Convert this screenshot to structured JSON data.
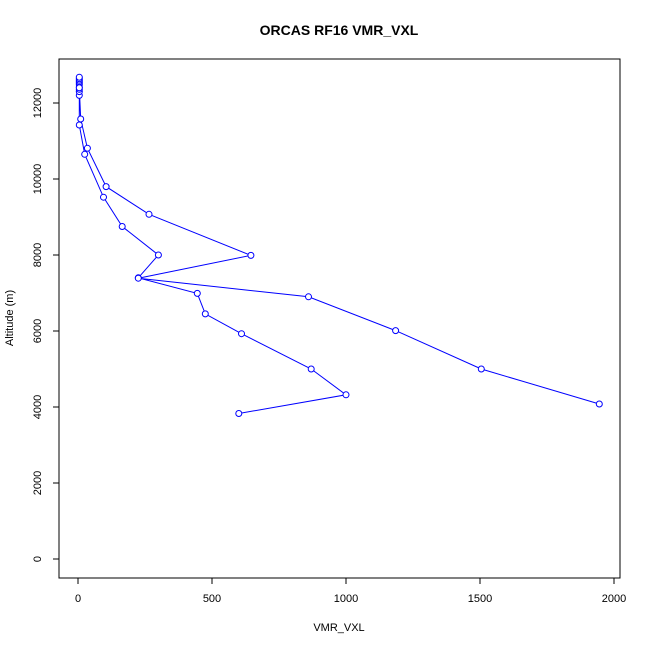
{
  "chart_data": {
    "type": "line",
    "title": "ORCAS RF16 VMR_VXL",
    "xlabel": "VMR_VXL",
    "ylabel": "Altitude (m)",
    "xlim": [
      0,
      2000
    ],
    "ylim": [
      0,
      13000
    ],
    "x_ticks": [
      0,
      500,
      1000,
      1500,
      2000
    ],
    "y_ticks": [
      0,
      2000,
      4000,
      6000,
      8000,
      10000,
      12000
    ],
    "grid": false,
    "legend": "none",
    "series_color": "#0000ff",
    "series": [
      {
        "x": [
          600,
          1000,
          870,
          610,
          475,
          445,
          225,
          300,
          165,
          95,
          25,
          5,
          5,
          5,
          5,
          5,
          5,
          5,
          5,
          5,
          5,
          5,
          5,
          10,
          35,
          105,
          265,
          645,
          225,
          860,
          1185,
          1505,
          1945
        ],
        "y": [
          3830,
          4320,
          5000,
          5930,
          6450,
          6990,
          7400,
          8000,
          8750,
          9520,
          10650,
          11420,
          12200,
          12300,
          12360,
          12420,
          12480,
          12520,
          12560,
          12600,
          12640,
          12680,
          12400,
          11580,
          10810,
          9800,
          9070,
          7990,
          7390,
          6900,
          6010,
          5000,
          4080
        ]
      }
    ]
  }
}
